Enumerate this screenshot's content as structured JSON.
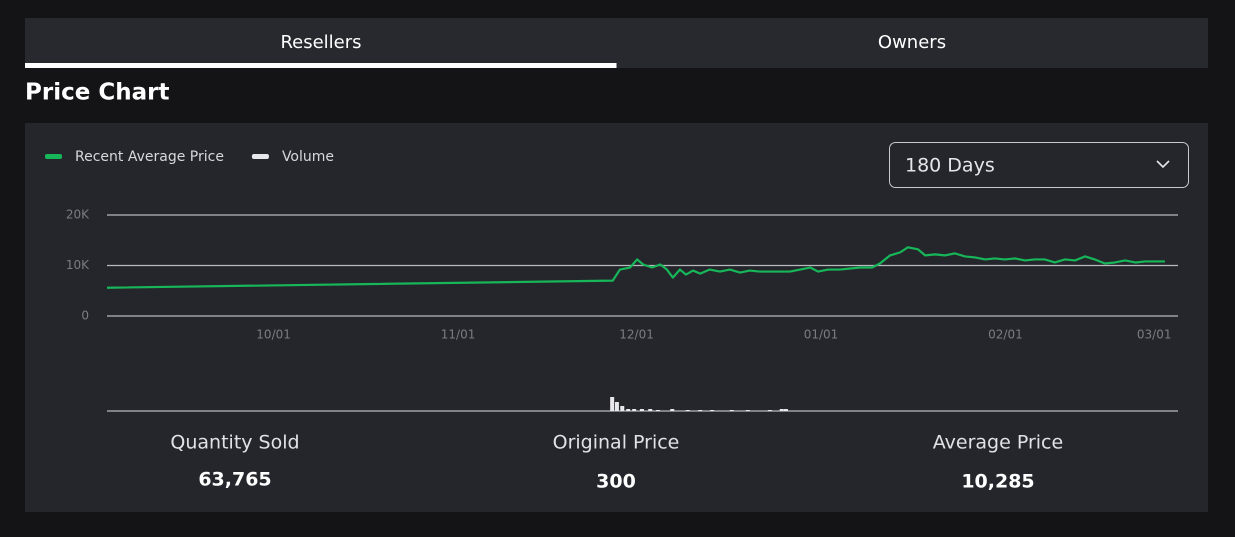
{
  "tabs": [
    {
      "label": "Resellers",
      "active": true
    },
    {
      "label": "Owners",
      "active": false
    }
  ],
  "heading": "Price Chart",
  "dropdown": "180 Days",
  "chart_data": {
    "type": "line",
    "xlim": [
      0,
      180
    ],
    "xticks": [
      {
        "value": 28,
        "label": "10/01"
      },
      {
        "value": 59,
        "label": "11/01"
      },
      {
        "value": 89,
        "label": "12/01"
      },
      {
        "value": 120,
        "label": "01/01"
      },
      {
        "value": 151,
        "label": "02/01"
      },
      {
        "value": 176,
        "label": "03/01"
      }
    ],
    "ylim": [
      0,
      20000
    ],
    "yticks": [
      {
        "value": 20000,
        "label": "20K"
      },
      {
        "value": 10000,
        "label": "10K"
      },
      0
    ],
    "grid": true,
    "series": [
      {
        "name": "Recent Average Price",
        "color": "#17b659",
        "x": [
          0,
          85,
          86.2,
          87.9,
          89.1,
          90.1,
          91.6,
          93,
          94.1,
          95.1,
          96.3,
          97.3,
          98.5,
          99.7,
          101.3,
          103,
          104.7,
          106.4,
          108,
          109.7,
          112.3,
          114.8,
          116.5,
          118.2,
          119.5,
          121.2,
          123.2,
          124.9,
          126.6,
          128.6,
          129.9,
          131.6,
          133.3,
          134.6,
          136.3,
          137.5,
          139.2,
          140.8,
          142.5,
          144.2,
          145.9,
          147.6,
          149.2,
          150.9,
          152.6,
          154.3,
          155.9,
          157.6,
          159.3,
          161,
          162.7,
          164.4,
          166,
          167.7,
          169.4,
          171.1,
          172.8,
          174.5,
          176.1,
          177.8
        ],
        "values": [
          5600,
          7000,
          9200,
          9600,
          11200,
          10200,
          9600,
          10200,
          9200,
          7600,
          9200,
          8200,
          9000,
          8400,
          9200,
          8800,
          9200,
          8600,
          9000,
          8800,
          8800,
          8800,
          9200,
          9600,
          8800,
          9200,
          9200,
          9400,
          9600,
          9600,
          10400,
          12000,
          12600,
          13600,
          13200,
          12000,
          12200,
          12000,
          12400,
          11800,
          11600,
          11200,
          11400,
          11200,
          11400,
          11000,
          11200,
          11200,
          10600,
          11200,
          11000,
          11800,
          11200,
          10400,
          10600,
          11000,
          10600,
          10800,
          10800,
          10800
        ]
      },
      {
        "name": "Volume",
        "color": "#e8e8ec",
        "type": "bar",
        "x": [
          84.9,
          85.7,
          86.6,
          87.6,
          88.6,
          89.9,
          91.3,
          92.6,
          95,
          97.6,
          99.7,
          101.7,
          105,
          107.7,
          111.4,
          113.4,
          114.1
        ],
        "values": [
          14,
          9,
          5,
          2,
          2,
          2,
          2,
          1,
          2,
          1,
          1,
          1,
          1,
          1,
          1,
          2,
          2
        ]
      }
    ]
  },
  "stats": [
    {
      "label": "Quantity Sold",
      "value": "63,765"
    },
    {
      "label": "Original Price",
      "value": "300"
    },
    {
      "label": "Average Price",
      "value": "10,285"
    }
  ]
}
